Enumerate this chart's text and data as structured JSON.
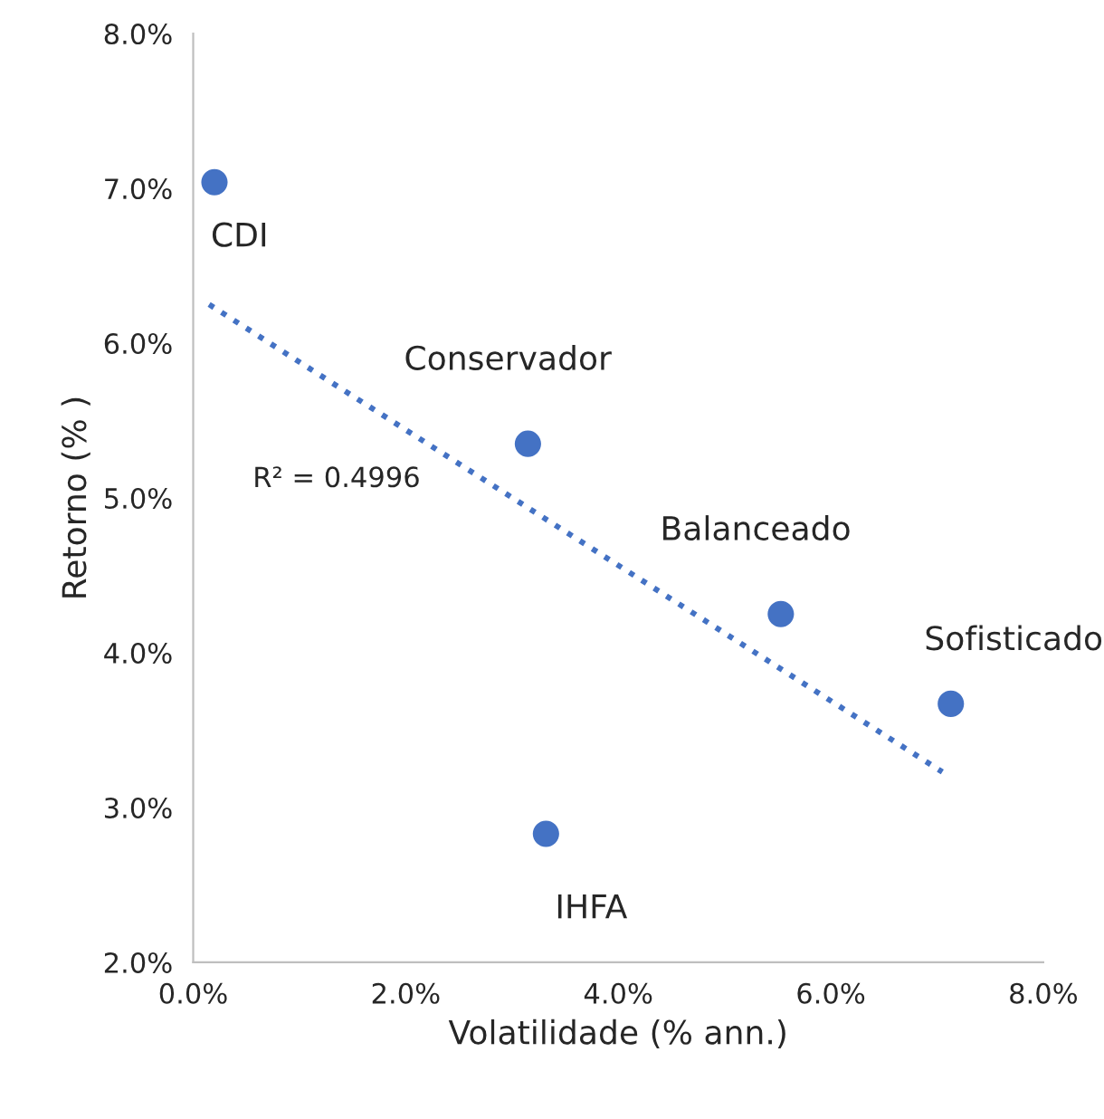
{
  "chart_data": {
    "type": "scatter",
    "xlabel": "Volatilidade (% ann.)",
    "ylabel": "Retorno (% )",
    "series": [
      {
        "color": "#4472c4",
        "x": [
          0.2,
          3.15,
          5.53,
          7.13,
          3.32
        ],
        "values": [
          7.04,
          5.35,
          4.25,
          3.67,
          2.83
        ],
        "marker": "circle"
      },
      {
        "type": "line",
        "color": "#4472c4",
        "x": [
          0.15,
          7.05
        ],
        "values": [
          6.25,
          3.23
        ],
        "line_style": "dotted",
        "marker": "none"
      }
    ],
    "annotations": [
      {
        "text": "CDI",
        "x": 0.2,
        "y": 7.04
      },
      {
        "text": "Conservador",
        "x": 3.15,
        "y": 5.35
      },
      {
        "text": "Balanceado",
        "x": 5.53,
        "y": 4.25
      },
      {
        "text": "Sofisticado",
        "x": 7.13,
        "y": 3.67
      },
      {
        "text": "IHFA",
        "x": 3.32,
        "y": 2.83
      },
      "R² = 0.4996"
    ],
    "xlim": [
      0,
      8
    ],
    "ylim": [
      2,
      8
    ],
    "xticks": [
      {
        "value": 0,
        "label": "0.0%"
      },
      {
        "value": 2,
        "label": "2.0%"
      },
      {
        "value": 4,
        "label": "4.0%"
      },
      {
        "value": 6,
        "label": "6.0%"
      },
      {
        "value": 8,
        "label": "8.0%"
      }
    ],
    "yticks": [
      {
        "value": 2,
        "label": "2.0%"
      },
      {
        "value": 3,
        "label": "3.0%"
      },
      {
        "value": 4,
        "label": "4.0%"
      },
      {
        "value": 5,
        "label": "5.0%"
      },
      {
        "value": 6,
        "label": "6.0%"
      },
      {
        "value": 7,
        "label": "7.0%"
      },
      {
        "value": 8,
        "label": "8.0%"
      }
    ],
    "grid": false,
    "legend": false
  }
}
